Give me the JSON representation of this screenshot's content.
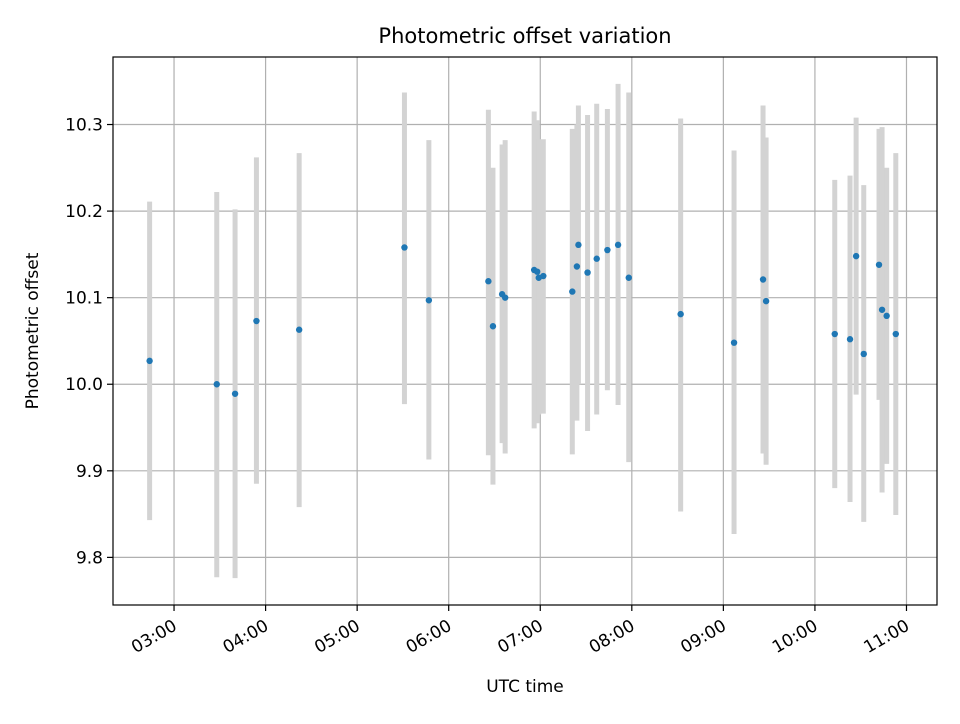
{
  "colors": {
    "marker": "#1f77b4",
    "errorbar": "#d3d3d3",
    "grid": "#b0b0b0",
    "axes": "#000000"
  },
  "chart_data": {
    "type": "scatter",
    "title": "Photometric offset variation",
    "xlabel": "UTC time",
    "ylabel": "Photometric offset",
    "xlim": [
      "02:20",
      "11:20"
    ],
    "ylim": [
      9.745,
      10.378
    ],
    "grid": true,
    "x_ticks": [
      "03:00",
      "04:00",
      "05:00",
      "06:00",
      "07:00",
      "08:00",
      "09:00",
      "10:00",
      "11:00"
    ],
    "y_ticks": [
      "9.8",
      "9.9",
      "10.0",
      "10.1",
      "10.2",
      "10.3"
    ],
    "series": [
      {
        "marker": "dot",
        "points": [
          {
            "x": "02:44",
            "y": 10.027,
            "lo": 9.843,
            "hi": 10.211
          },
          {
            "x": "03:28",
            "y": 10.0,
            "lo": 9.777,
            "hi": 10.222
          },
          {
            "x": "03:40",
            "y": 9.989,
            "lo": 9.776,
            "hi": 10.202
          },
          {
            "x": "03:54",
            "y": 10.073,
            "lo": 9.885,
            "hi": 10.262
          },
          {
            "x": "04:22",
            "y": 10.063,
            "lo": 9.858,
            "hi": 10.267
          },
          {
            "x": "05:31",
            "y": 10.158,
            "lo": 9.977,
            "hi": 10.337
          },
          {
            "x": "05:47",
            "y": 10.097,
            "lo": 9.913,
            "hi": 10.282
          },
          {
            "x": "06:26",
            "y": 10.119,
            "lo": 9.918,
            "hi": 10.317
          },
          {
            "x": "06:29",
            "y": 10.067,
            "lo": 9.884,
            "hi": 10.25
          },
          {
            "x": "06:35",
            "y": 10.104,
            "lo": 9.932,
            "hi": 10.277
          },
          {
            "x": "06:37",
            "y": 10.1,
            "lo": 9.92,
            "hi": 10.282
          },
          {
            "x": "06:56",
            "y": 10.132,
            "lo": 9.949,
            "hi": 10.315
          },
          {
            "x": "06:58",
            "y": 10.13,
            "lo": 9.955,
            "hi": 10.305
          },
          {
            "x": "06:59",
            "y": 10.123,
            "lo": 9.965,
            "hi": 10.283
          },
          {
            "x": "07:02",
            "y": 10.125,
            "lo": 9.966,
            "hi": 10.283
          },
          {
            "x": "07:21",
            "y": 10.107,
            "lo": 9.919,
            "hi": 10.295
          },
          {
            "x": "07:24",
            "y": 10.136,
            "lo": 9.958,
            "hi": 10.3
          },
          {
            "x": "07:25",
            "y": 10.161,
            "lo": 10.0,
            "hi": 10.322
          },
          {
            "x": "07:31",
            "y": 10.129,
            "lo": 9.946,
            "hi": 10.311
          },
          {
            "x": "07:37",
            "y": 10.145,
            "lo": 9.965,
            "hi": 10.324
          },
          {
            "x": "07:44",
            "y": 10.155,
            "lo": 9.993,
            "hi": 10.318
          },
          {
            "x": "07:51",
            "y": 10.161,
            "lo": 9.976,
            "hi": 10.347
          },
          {
            "x": "07:58",
            "y": 10.123,
            "lo": 9.91,
            "hi": 10.337
          },
          {
            "x": "08:32",
            "y": 10.081,
            "lo": 9.853,
            "hi": 10.307
          },
          {
            "x": "09:07",
            "y": 10.048,
            "lo": 9.827,
            "hi": 10.27
          },
          {
            "x": "09:26",
            "y": 10.121,
            "lo": 9.92,
            "hi": 10.322
          },
          {
            "x": "09:28",
            "y": 10.096,
            "lo": 9.907,
            "hi": 10.285
          },
          {
            "x": "10:13",
            "y": 10.058,
            "lo": 9.88,
            "hi": 10.236
          },
          {
            "x": "10:23",
            "y": 10.052,
            "lo": 9.864,
            "hi": 10.241
          },
          {
            "x": "10:27",
            "y": 10.148,
            "lo": 9.988,
            "hi": 10.308
          },
          {
            "x": "10:32",
            "y": 10.035,
            "lo": 9.841,
            "hi": 10.23
          },
          {
            "x": "10:42",
            "y": 10.138,
            "lo": 9.982,
            "hi": 10.295
          },
          {
            "x": "10:44",
            "y": 10.086,
            "lo": 9.875,
            "hi": 10.297
          },
          {
            "x": "10:47",
            "y": 10.079,
            "lo": 9.908,
            "hi": 10.25
          },
          {
            "x": "10:53",
            "y": 10.058,
            "lo": 9.849,
            "hi": 10.267
          }
        ]
      }
    ]
  }
}
